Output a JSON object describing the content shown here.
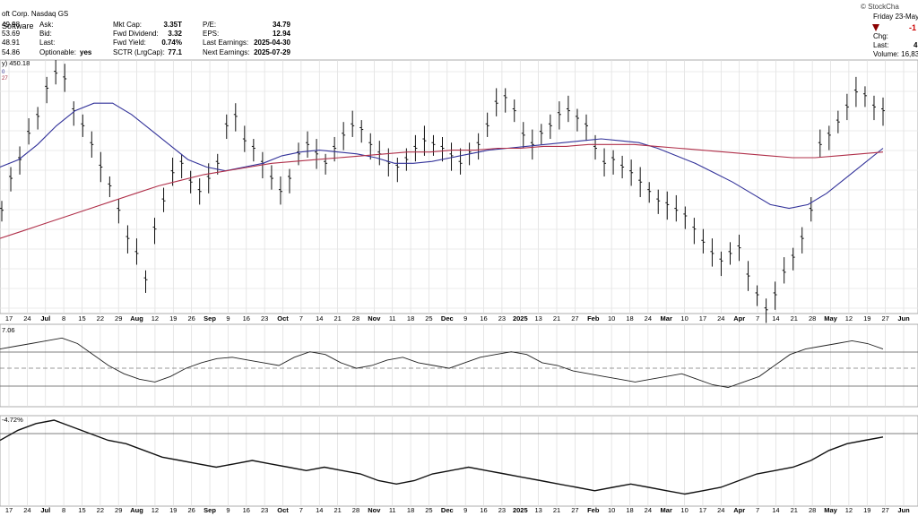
{
  "header": {
    "company": "oft Corp. Nasdaq GS",
    "sector": "Software",
    "brand": "© StockCha",
    "left_col": [
      {
        "label": "Ask:",
        "value": "49.98"
      },
      {
        "label": "Bid:",
        "value": "53.69"
      },
      {
        "label": "Last:",
        "value": "48.91"
      },
      {
        "label": "Optionable:",
        "value": "yes"
      }
    ],
    "left_nums_extra": [
      "54.86"
    ],
    "mid_col": [
      {
        "label": "Mkt Cap:",
        "value": "3.35T"
      },
      {
        "label": "Fwd Dividend:",
        "value": "3.32"
      },
      {
        "label": "Fwd Yield:",
        "value": "0.74%"
      },
      {
        "label": "SCTR (LrgCap):",
        "value": "77.1"
      }
    ],
    "right_col": [
      {
        "label": "P/E:",
        "value": "34.79"
      },
      {
        "label": "EPS:",
        "value": "12.94"
      },
      {
        "label": "Last Earnings:",
        "value": "2025-04-30"
      },
      {
        "label": "Next Earnings:",
        "value": "2025-07-29"
      }
    ],
    "quote": {
      "date": "Friday  23-May",
      "chg_value": "-1",
      "chg_label": "Chg:",
      "last_label": "Last:",
      "last_value": "4",
      "volume": "Volume: 16,83"
    },
    "price_label": "y) 450.18",
    "legend_lines": [
      "0",
      "27"
    ]
  },
  "panel_labels": {
    "rsi_value": "7.06",
    "perf_value": "-4.72%"
  },
  "x_axis": {
    "labels": [
      "17",
      "24",
      "Jul",
      "8",
      "15",
      "22",
      "29",
      "Aug",
      "12",
      "19",
      "26",
      "Sep",
      "9",
      "16",
      "23",
      "Oct",
      "7",
      "14",
      "21",
      "28",
      "Nov",
      "11",
      "18",
      "25",
      "Dec",
      "9",
      "16",
      "23",
      "2025",
      "13",
      "21",
      "27",
      "Feb",
      "10",
      "18",
      "24",
      "Mar",
      "10",
      "17",
      "24",
      "Apr",
      "7",
      "14",
      "21",
      "28",
      "May",
      "12",
      "19",
      "27",
      "Jun"
    ],
    "months": [
      "Jul",
      "Aug",
      "Sep",
      "Oct",
      "Nov",
      "Dec",
      "2025",
      "Feb",
      "Mar",
      "Apr",
      "May",
      "Jun"
    ]
  },
  "chart_data": {
    "type": "line",
    "price_series": [
      395,
      412,
      422,
      436,
      445,
      460,
      468,
      465,
      448,
      440,
      430,
      418,
      408,
      395,
      380,
      372,
      358,
      385,
      400,
      415,
      420,
      410,
      405,
      412,
      420,
      440,
      445,
      432,
      428,
      420,
      412,
      405,
      412,
      425,
      430,
      425,
      420,
      428,
      435,
      440,
      438,
      430,
      425,
      420,
      418,
      422,
      428,
      432,
      430,
      428,
      424,
      420,
      426,
      430,
      440,
      452,
      455,
      448,
      435,
      430,
      436,
      440,
      446,
      448,
      444,
      440,
      428,
      420,
      422,
      418,
      415,
      410,
      405,
      400,
      398,
      395,
      392,
      385,
      378,
      372,
      368,
      372,
      375,
      360,
      350,
      342,
      350,
      362,
      370,
      380,
      395,
      430,
      435,
      442,
      450,
      458,
      456,
      450,
      448
    ],
    "ma50": [
      418,
      422,
      430,
      440,
      448,
      452,
      452,
      446,
      438,
      430,
      422,
      418,
      416,
      418,
      420,
      424,
      426,
      427,
      426,
      425,
      423,
      420,
      420,
      421,
      423,
      425,
      427,
      428,
      429,
      430,
      431,
      432,
      433,
      432,
      431,
      428,
      424,
      420,
      415,
      410,
      404,
      398,
      396,
      398,
      404,
      412,
      420,
      428
    ],
    "ma200": [
      380,
      384,
      388,
      392,
      396,
      400,
      404,
      408,
      411,
      414,
      416,
      418,
      420,
      421,
      422,
      423,
      424,
      425,
      426,
      426,
      427,
      427,
      428,
      428,
      429,
      429,
      430,
      430,
      430,
      429,
      428,
      427,
      426,
      425,
      424,
      423,
      423,
      424,
      425,
      426
    ],
    "rsi": [
      62,
      64,
      66,
      68,
      70,
      66,
      58,
      50,
      44,
      40,
      38,
      42,
      48,
      52,
      55,
      56,
      54,
      52,
      50,
      56,
      60,
      58,
      52,
      48,
      50,
      54,
      56,
      52,
      50,
      48,
      52,
      56,
      58,
      60,
      58,
      52,
      50,
      46,
      44,
      42,
      40,
      38,
      40,
      42,
      44,
      40,
      36,
      34,
      38,
      42,
      50,
      58,
      62,
      64,
      66,
      68,
      66,
      62
    ],
    "perf": [
      -2,
      1,
      3,
      4,
      2,
      0,
      -2,
      -3,
      -5,
      -7,
      -8,
      -9,
      -10,
      -9,
      -8,
      -9,
      -10,
      -11,
      -10,
      -11,
      -12,
      -14,
      -15,
      -14,
      -12,
      -11,
      -10,
      -11,
      -12,
      -13,
      -14,
      -15,
      -16,
      -17,
      -16,
      -15,
      -16,
      -17,
      -18,
      -17,
      -16,
      -14,
      -12,
      -11,
      -10,
      -8,
      -5,
      -3,
      -2,
      -1
    ]
  }
}
